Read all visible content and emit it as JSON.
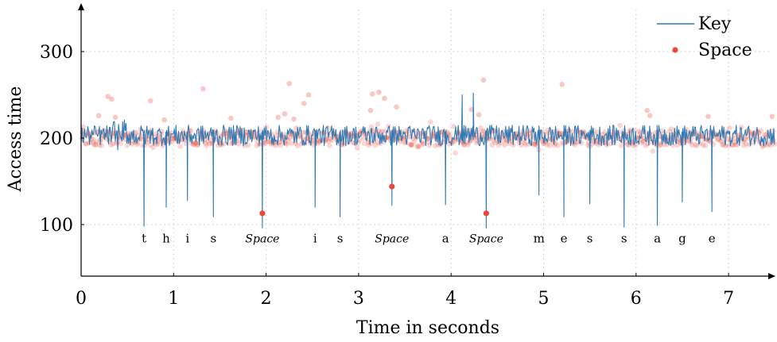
{
  "chart_data": {
    "type": "line",
    "xlabel": "Time in seconds",
    "ylabel": "Access time",
    "xlim": [
      0,
      7.5
    ],
    "ylim": [
      40,
      355
    ],
    "x_ticks": [
      0,
      1,
      2,
      3,
      4,
      5,
      6,
      7
    ],
    "y_ticks": [
      100,
      200,
      300
    ],
    "grid": "dotted",
    "legend_position": "top-right",
    "colors": {
      "key": "#2e7bb5",
      "space": "#e84a3a"
    },
    "series": [
      {
        "name": "Key",
        "style": "line",
        "baseline": 203,
        "dips": [
          {
            "x": 0.68,
            "y": 98
          },
          {
            "x": 0.92,
            "y": 120
          },
          {
            "x": 1.15,
            "y": 128
          },
          {
            "x": 1.43,
            "y": 109
          },
          {
            "x": 1.96,
            "y": 96
          },
          {
            "x": 2.53,
            "y": 120
          },
          {
            "x": 2.8,
            "y": 109
          },
          {
            "x": 3.36,
            "y": 122
          },
          {
            "x": 3.94,
            "y": 123
          },
          {
            "x": 4.38,
            "y": 96
          },
          {
            "x": 4.95,
            "y": 134
          },
          {
            "x": 5.22,
            "y": 109
          },
          {
            "x": 5.5,
            "y": 124
          },
          {
            "x": 5.87,
            "y": 97
          },
          {
            "x": 6.23,
            "y": 99
          },
          {
            "x": 6.5,
            "y": 126
          },
          {
            "x": 6.82,
            "y": 115
          }
        ],
        "peaks": [
          {
            "x": 4.12,
            "y": 250
          },
          {
            "x": 4.24,
            "y": 252
          }
        ]
      },
      {
        "name": "Space",
        "style": "points",
        "highlighted": [
          {
            "x": 1.96,
            "y": 113
          },
          {
            "x": 3.36,
            "y": 144
          },
          {
            "x": 4.38,
            "y": 113
          }
        ],
        "outliers": [
          {
            "x": 0.29,
            "y": 248
          },
          {
            "x": 0.33,
            "y": 245
          },
          {
            "x": 0.75,
            "y": 243
          },
          {
            "x": 1.32,
            "y": 257
          },
          {
            "x": 2.25,
            "y": 263
          },
          {
            "x": 2.41,
            "y": 240
          },
          {
            "x": 2.46,
            "y": 250
          },
          {
            "x": 2.2,
            "y": 228
          },
          {
            "x": 2.3,
            "y": 222
          },
          {
            "x": 3.15,
            "y": 251
          },
          {
            "x": 3.22,
            "y": 253
          },
          {
            "x": 3.28,
            "y": 246
          },
          {
            "x": 3.13,
            "y": 232
          },
          {
            "x": 3.41,
            "y": 236
          },
          {
            "x": 4.3,
            "y": 227
          },
          {
            "x": 4.35,
            "y": 267
          },
          {
            "x": 5.2,
            "y": 262
          },
          {
            "x": 6.12,
            "y": 232
          },
          {
            "x": 6.15,
            "y": 226
          },
          {
            "x": 6.78,
            "y": 225
          },
          {
            "x": 7.47,
            "y": 225
          },
          {
            "x": 0.19,
            "y": 226
          },
          {
            "x": 0.37,
            "y": 224
          },
          {
            "x": 0.9,
            "y": 221
          },
          {
            "x": 1.62,
            "y": 223
          },
          {
            "x": 4.22,
            "y": 233
          },
          {
            "x": 2.13,
            "y": 224
          }
        ]
      }
    ],
    "char_labels": [
      {
        "x": 0.68,
        "text": "t",
        "italic": false
      },
      {
        "x": 0.92,
        "text": "h",
        "italic": false
      },
      {
        "x": 1.15,
        "text": "i",
        "italic": false
      },
      {
        "x": 1.43,
        "text": "s",
        "italic": false
      },
      {
        "x": 1.96,
        "text": "Space",
        "italic": true
      },
      {
        "x": 2.53,
        "text": "i",
        "italic": false
      },
      {
        "x": 2.8,
        "text": "s",
        "italic": false
      },
      {
        "x": 3.36,
        "text": "Space",
        "italic": true
      },
      {
        "x": 3.94,
        "text": "a",
        "italic": false
      },
      {
        "x": 4.38,
        "text": "Space",
        "italic": true
      },
      {
        "x": 4.95,
        "text": "m",
        "italic": false
      },
      {
        "x": 5.22,
        "text": "e",
        "italic": false
      },
      {
        "x": 5.5,
        "text": "s",
        "italic": false
      },
      {
        "x": 5.87,
        "text": "s",
        "italic": false
      },
      {
        "x": 6.23,
        "text": "a",
        "italic": false
      },
      {
        "x": 6.5,
        "text": "g",
        "italic": false
      },
      {
        "x": 6.82,
        "text": "e",
        "italic": false
      }
    ],
    "char_label_y": 84
  }
}
